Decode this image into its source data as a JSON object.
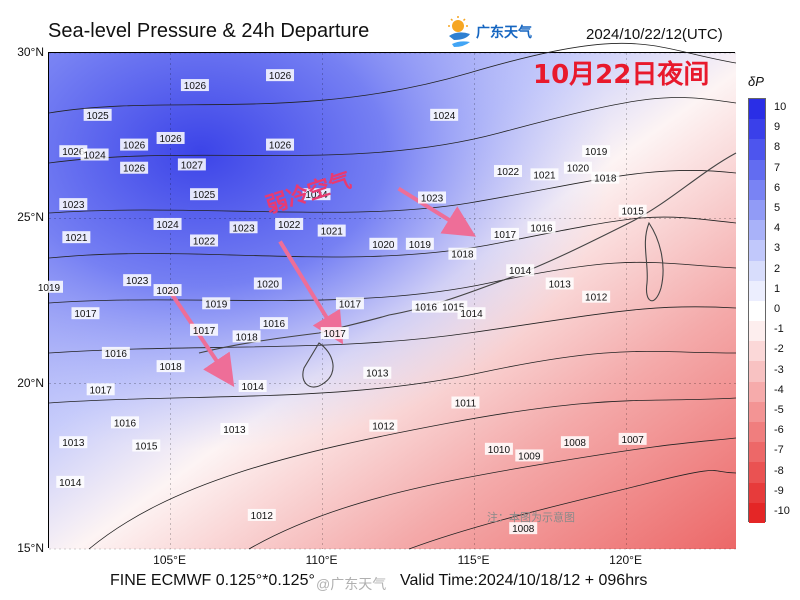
{
  "title": "Sea-level Pressure & 24h Departure",
  "logo": {
    "text": "广东天气",
    "icon": "sun-cloud-logo-icon"
  },
  "datetime": "2024/10/22/12(UTC)",
  "overlay_title": "10月22日夜间",
  "cold_air_label": "弱冷空气",
  "note": "注：本图为示意图",
  "footer": {
    "model": "FINE ECMWF 0.125°*0.125°",
    "valid_time": "Valid Time:2024/10/18/12 + 096hrs",
    "watermark": "@广东天气"
  },
  "axes": {
    "lat": [
      {
        "label": "30°N",
        "value": 30
      },
      {
        "label": "25°N",
        "value": 25
      },
      {
        "label": "20°N",
        "value": 20
      },
      {
        "label": "15°N",
        "value": 15
      }
    ],
    "lon": [
      {
        "label": "105°E",
        "value": 105
      },
      {
        "label": "110°E",
        "value": 110
      },
      {
        "label": "115°E",
        "value": 115
      },
      {
        "label": "120°E",
        "value": 120
      }
    ]
  },
  "colorbar": {
    "title": "δP",
    "levels": [
      "10",
      "9",
      "8",
      "7",
      "6",
      "5",
      "4",
      "3",
      "2",
      "1",
      "0",
      "-1",
      "-2",
      "-3",
      "-4",
      "-5",
      "-6",
      "-7",
      "-8",
      "-9",
      "-10"
    ],
    "colors": [
      "#2a2ee6",
      "#3a40ea",
      "#4d55ee",
      "#626cf1",
      "#7983f4",
      "#919bf6",
      "#a9b2f9",
      "#c1c8fb",
      "#d8ddfc",
      "#eceefe",
      "#ffffff",
      "#fdeeee",
      "#fbd8d8",
      "#f8c2c2",
      "#f6abab",
      "#f39494",
      "#f07e7e",
      "#ed6868",
      "#ea5252",
      "#e73b3b",
      "#e42626"
    ]
  },
  "isobar_labels": [
    {
      "text": "1026",
      "lon": 103.8,
      "lat": 27.2
    },
    {
      "text": "1026",
      "lon": 105.8,
      "lat": 29.0
    },
    {
      "text": "1025",
      "lon": 102.6,
      "lat": 28.1
    },
    {
      "text": "1026",
      "lon": 101.8,
      "lat": 27.0
    },
    {
      "text": "1024",
      "lon": 102.5,
      "lat": 26.9
    },
    {
      "text": "1026",
      "lon": 105.0,
      "lat": 27.4
    },
    {
      "text": "1026",
      "lon": 108.6,
      "lat": 29.3
    },
    {
      "text": "1026",
      "lon": 108.6,
      "lat": 27.2
    },
    {
      "text": "1027",
      "lon": 105.7,
      "lat": 26.6
    },
    {
      "text": "1026",
      "lon": 103.8,
      "lat": 26.5
    },
    {
      "text": "1025",
      "lon": 106.1,
      "lat": 25.7
    },
    {
      "text": "1023",
      "lon": 101.8,
      "lat": 25.4
    },
    {
      "text": "1024",
      "lon": 104.9,
      "lat": 24.8
    },
    {
      "text": "1024",
      "lon": 109.8,
      "lat": 25.7
    },
    {
      "text": "1024",
      "lon": 114.0,
      "lat": 28.1
    },
    {
      "text": "1023",
      "lon": 107.4,
      "lat": 24.7
    },
    {
      "text": "1022",
      "lon": 108.9,
      "lat": 24.8
    },
    {
      "text": "1022",
      "lon": 106.1,
      "lat": 24.3
    },
    {
      "text": "1021",
      "lon": 101.9,
      "lat": 24.4
    },
    {
      "text": "1021",
      "lon": 110.3,
      "lat": 24.6
    },
    {
      "text": "1020",
      "lon": 112.0,
      "lat": 24.2
    },
    {
      "text": "1023",
      "lon": 113.6,
      "lat": 25.6
    },
    {
      "text": "1022",
      "lon": 116.1,
      "lat": 26.4
    },
    {
      "text": "1021",
      "lon": 117.3,
      "lat": 26.3
    },
    {
      "text": "1020",
      "lon": 118.4,
      "lat": 26.5
    },
    {
      "text": "1019",
      "lon": 119.0,
      "lat": 27.0
    },
    {
      "text": "1018",
      "lon": 119.3,
      "lat": 26.2
    },
    {
      "text": "1019",
      "lon": 113.2,
      "lat": 24.2
    },
    {
      "text": "1018",
      "lon": 114.6,
      "lat": 23.9
    },
    {
      "text": "1017",
      "lon": 116.0,
      "lat": 24.5
    },
    {
      "text": "1016",
      "lon": 117.2,
      "lat": 24.7
    },
    {
      "text": "1015",
      "lon": 120.2,
      "lat": 25.2
    },
    {
      "text": "1014",
      "lon": 116.5,
      "lat": 23.4
    },
    {
      "text": "1013",
      "lon": 117.8,
      "lat": 23.0
    },
    {
      "text": "1012",
      "lon": 119.0,
      "lat": 22.6
    },
    {
      "text": "1020",
      "lon": 108.2,
      "lat": 23.0
    },
    {
      "text": "1020",
      "lon": 104.9,
      "lat": 22.8
    },
    {
      "text": "1019",
      "lon": 106.5,
      "lat": 22.4
    },
    {
      "text": "1019",
      "lon": 101.0,
      "lat": 22.9
    },
    {
      "text": "1023",
      "lon": 103.9,
      "lat": 23.1
    },
    {
      "text": "1017",
      "lon": 110.9,
      "lat": 22.4
    },
    {
      "text": "1016",
      "lon": 113.4,
      "lat": 22.3
    },
    {
      "text": "1015",
      "lon": 114.3,
      "lat": 22.3
    },
    {
      "text": "1014",
      "lon": 114.9,
      "lat": 22.1
    },
    {
      "text": "1017",
      "lon": 102.2,
      "lat": 22.1
    },
    {
      "text": "1017",
      "lon": 106.1,
      "lat": 21.6
    },
    {
      "text": "1016",
      "lon": 108.4,
      "lat": 21.8
    },
    {
      "text": "1018",
      "lon": 107.5,
      "lat": 21.4
    },
    {
      "text": "1017",
      "lon": 110.4,
      "lat": 21.5
    },
    {
      "text": "1016",
      "lon": 103.2,
      "lat": 20.9
    },
    {
      "text": "1018",
      "lon": 105.0,
      "lat": 20.5
    },
    {
      "text": "1014",
      "lon": 107.7,
      "lat": 19.9
    },
    {
      "text": "1013",
      "lon": 111.8,
      "lat": 20.3
    },
    {
      "text": "1013",
      "lon": 107.1,
      "lat": 18.6
    },
    {
      "text": "1012",
      "lon": 112.0,
      "lat": 18.7
    },
    {
      "text": "1011",
      "lon": 114.7,
      "lat": 19.4
    },
    {
      "text": "1010",
      "lon": 115.8,
      "lat": 18.0
    },
    {
      "text": "1009",
      "lon": 116.8,
      "lat": 17.8
    },
    {
      "text": "1008",
      "lon": 118.3,
      "lat": 18.2
    },
    {
      "text": "1007",
      "lon": 120.2,
      "lat": 18.3
    },
    {
      "text": "1008",
      "lon": 116.6,
      "lat": 15.6
    },
    {
      "text": "1012",
      "lon": 108.0,
      "lat": 16.0
    },
    {
      "text": "1017",
      "lon": 102.7,
      "lat": 19.8
    },
    {
      "text": "1016",
      "lon": 103.5,
      "lat": 18.8
    },
    {
      "text": "1015",
      "lon": 104.2,
      "lat": 18.1
    },
    {
      "text": "1013",
      "lon": 101.8,
      "lat": 18.2
    },
    {
      "text": "1014",
      "lon": 101.7,
      "lat": 17.0
    }
  ],
  "arrows": [
    {
      "from": [
        104.9,
        22.9
      ],
      "to": [
        106.8,
        20.3
      ]
    },
    {
      "from": [
        108.6,
        24.3
      ],
      "to": [
        110.4,
        21.6
      ]
    },
    {
      "from": [
        112.5,
        25.9
      ],
      "to": [
        114.6,
        24.7
      ]
    }
  ]
}
